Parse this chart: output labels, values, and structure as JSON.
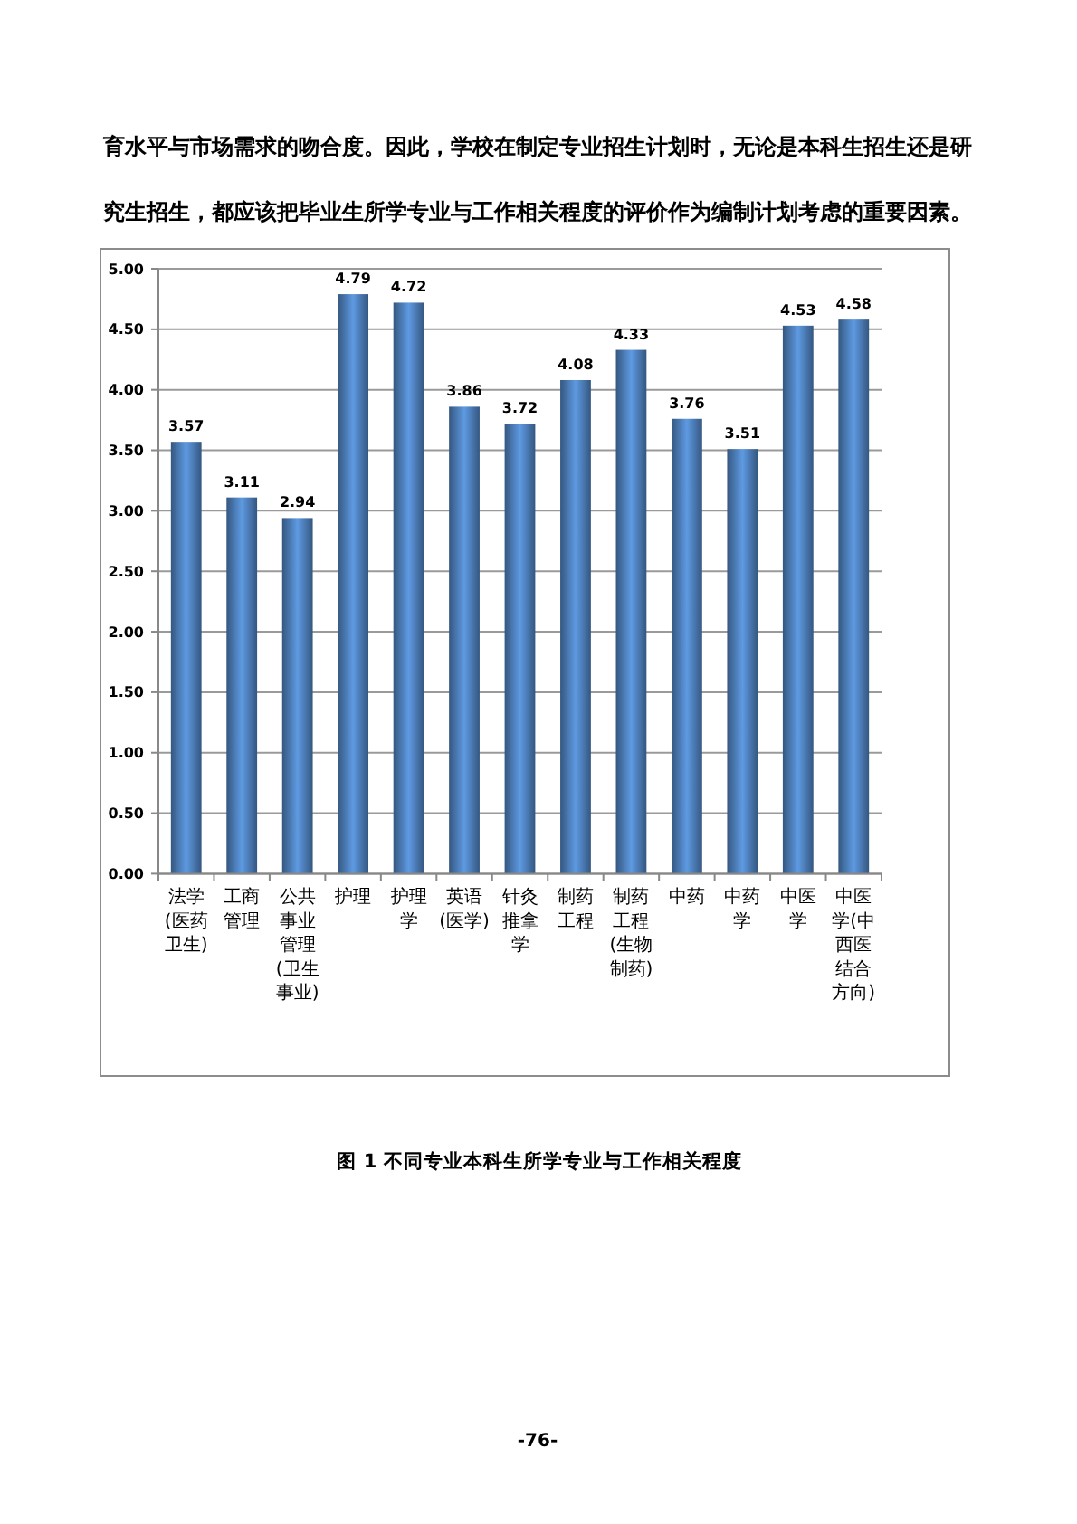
{
  "chart_data": {
    "type": "bar",
    "title": "图 1 不同专业本科生所学专业与工作相关程度",
    "annotations": [
      "育水平与市场需求的吻合度。因此，学校在制定专业招生计划时，无论是本科生招生还是研究生招生，都应该把毕业生所学专业与工作相关程度的评价作为编制计划考虑的重要因素。",
      "-76-"
    ],
    "categories": [
      "法学(医药卫生)",
      "工商管理",
      "公共事业管理(卫生事业)",
      "护理",
      "护理学",
      "英语(医学)",
      "针灸推拿学",
      "制药工程",
      "制药工程(生物制药)",
      "中药",
      "中药学",
      "中医学",
      "中医学(中西医结合方向)"
    ],
    "values": [
      3.57,
      3.11,
      2.94,
      4.79,
      4.72,
      3.86,
      3.72,
      4.08,
      4.33,
      3.76,
      3.51,
      4.53,
      4.58
    ],
    "color": "#4f81bd",
    "ylim": [
      0,
      5
    ],
    "yticks": [
      {
        "value": 0,
        "label": "0.00"
      },
      {
        "value": 0.5,
        "label": "0.50"
      },
      {
        "value": 1,
        "label": "1.00"
      },
      {
        "value": 1.5,
        "label": "1.50"
      },
      {
        "value": 2,
        "label": "2.00"
      },
      {
        "value": 2.5,
        "label": "2.50"
      },
      {
        "value": 3,
        "label": "3.00"
      },
      {
        "value": 3.5,
        "label": "3.50"
      },
      {
        "value": 4,
        "label": "4.00"
      },
      {
        "value": 4.5,
        "label": "4.50"
      },
      {
        "value": 5,
        "label": "5.00"
      }
    ],
    "grid": "y",
    "data_labels": true
  }
}
